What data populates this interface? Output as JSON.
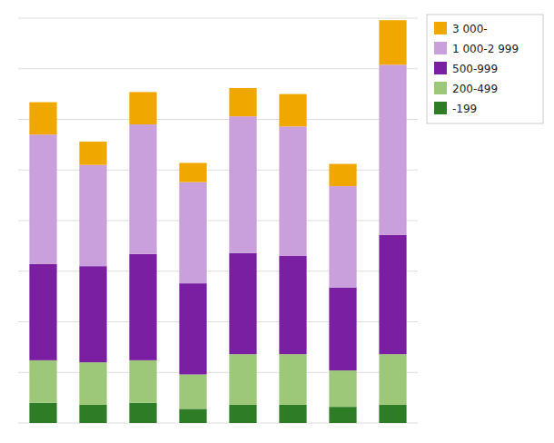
{
  "chart_data": {
    "type": "bar",
    "stacked": true,
    "categories": [
      null,
      null,
      null,
      null,
      null,
      null,
      null,
      null
    ],
    "series": [
      {
        "name": "-199",
        "color": "#2e7d26",
        "values": [
          20,
          18,
          20,
          14,
          18,
          18,
          16,
          18
        ]
      },
      {
        "name": "200-499",
        "color": "#9dc87a",
        "values": [
          42,
          42,
          42,
          34,
          50,
          50,
          36,
          50
        ]
      },
      {
        "name": "500-999",
        "color": "#7b1fa2",
        "values": [
          95,
          95,
          105,
          90,
          100,
          97,
          82,
          118
        ]
      },
      {
        "name": "1 000-2 999",
        "color": "#c9a0dc",
        "values": [
          128,
          100,
          128,
          100,
          135,
          128,
          100,
          168
        ]
      },
      {
        "name": "3 000-",
        "color": "#f0a800",
        "values": [
          32,
          23,
          32,
          19,
          28,
          32,
          22,
          44
        ]
      }
    ],
    "ylim": [
      0,
      400
    ],
    "yticks": [
      0,
      50,
      100,
      150,
      200,
      250,
      300,
      350,
      400
    ],
    "grid": true,
    "tick_labels": false
  }
}
